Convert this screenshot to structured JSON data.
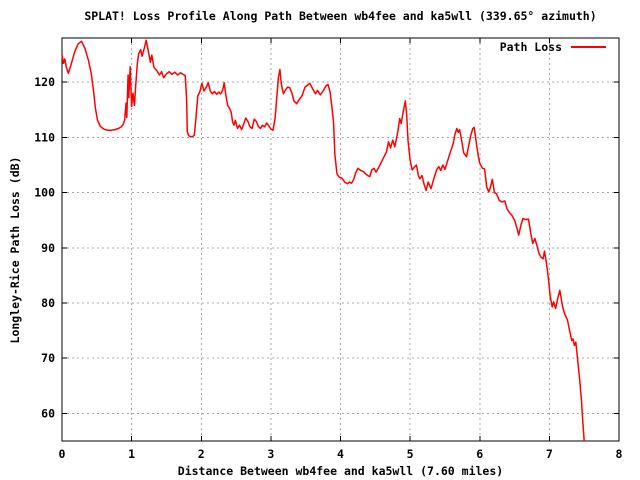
{
  "colors": {
    "line": "#ff0000",
    "grid": "#a8a8a8",
    "axis": "#000000",
    "background": "#ffffff",
    "text": "#000000"
  },
  "legend": {
    "label": "Path Loss"
  },
  "chart_data": {
    "type": "line",
    "title": "SPLAT! Loss Profile Along Path Between wb4fee and ka5wll (339.65° azimuth)",
    "xlabel": "Distance Between wb4fee and ka5wll (7.60 miles)",
    "ylabel": "Longley-Rice Path Loss (dB)",
    "xlim": [
      0,
      8
    ],
    "ylim": [
      55,
      128
    ],
    "x_ticks": [
      0,
      1,
      2,
      3,
      4,
      5,
      6,
      7,
      8
    ],
    "y_ticks": [
      60,
      70,
      80,
      90,
      100,
      110,
      120
    ],
    "grid": true,
    "legend_position": "top-right-inside",
    "series": [
      {
        "name": "Path Loss",
        "color": "#ff0000",
        "points": [
          [
            0.0,
            125.0
          ],
          [
            0.02,
            123.4
          ],
          [
            0.04,
            124.2
          ],
          [
            0.06,
            122.8
          ],
          [
            0.09,
            121.6
          ],
          [
            0.13,
            123.2
          ],
          [
            0.18,
            125.4
          ],
          [
            0.23,
            126.9
          ],
          [
            0.28,
            127.4
          ],
          [
            0.33,
            126.1
          ],
          [
            0.38,
            123.9
          ],
          [
            0.42,
            121.6
          ],
          [
            0.45,
            118.8
          ],
          [
            0.48,
            115.3
          ],
          [
            0.51,
            113.1
          ],
          [
            0.55,
            112.0
          ],
          [
            0.6,
            111.5
          ],
          [
            0.65,
            111.3
          ],
          [
            0.71,
            111.3
          ],
          [
            0.76,
            111.4
          ],
          [
            0.81,
            111.6
          ],
          [
            0.85,
            111.9
          ],
          [
            0.88,
            112.4
          ],
          [
            0.9,
            113.2
          ],
          [
            0.92,
            116.2
          ],
          [
            0.93,
            113.6
          ],
          [
            0.95,
            121.3
          ],
          [
            0.96,
            117.2
          ],
          [
            0.98,
            122.8
          ],
          [
            1.0,
            115.6
          ],
          [
            1.02,
            118.0
          ],
          [
            1.04,
            115.8
          ],
          [
            1.06,
            119.6
          ],
          [
            1.08,
            123.1
          ],
          [
            1.1,
            125.1
          ],
          [
            1.13,
            125.9
          ],
          [
            1.15,
            124.7
          ],
          [
            1.18,
            126.1
          ],
          [
            1.21,
            127.6
          ],
          [
            1.24,
            125.6
          ],
          [
            1.27,
            123.6
          ],
          [
            1.29,
            124.9
          ],
          [
            1.32,
            122.7
          ],
          [
            1.36,
            122.1
          ],
          [
            1.4,
            121.3
          ],
          [
            1.43,
            121.9
          ],
          [
            1.46,
            120.8
          ],
          [
            1.5,
            121.5
          ],
          [
            1.54,
            121.9
          ],
          [
            1.58,
            121.4
          ],
          [
            1.62,
            121.8
          ],
          [
            1.66,
            121.3
          ],
          [
            1.7,
            121.7
          ],
          [
            1.74,
            121.4
          ],
          [
            1.77,
            121.2
          ],
          [
            1.79,
            117.0
          ],
          [
            1.8,
            111.0
          ],
          [
            1.82,
            110.3
          ],
          [
            1.85,
            110.1
          ],
          [
            1.88,
            110.2
          ],
          [
            1.9,
            110.4
          ],
          [
            1.92,
            113.0
          ],
          [
            1.95,
            117.5
          ],
          [
            1.98,
            118.3
          ],
          [
            2.01,
            119.8
          ],
          [
            2.04,
            118.4
          ],
          [
            2.07,
            119.0
          ],
          [
            2.1,
            119.9
          ],
          [
            2.13,
            118.4
          ],
          [
            2.16,
            117.9
          ],
          [
            2.19,
            118.3
          ],
          [
            2.22,
            117.8
          ],
          [
            2.25,
            118.2
          ],
          [
            2.28,
            117.9
          ],
          [
            2.31,
            118.6
          ],
          [
            2.33,
            119.9
          ],
          [
            2.35,
            117.9
          ],
          [
            2.38,
            115.8
          ],
          [
            2.41,
            115.2
          ],
          [
            2.43,
            114.5
          ],
          [
            2.45,
            112.8
          ],
          [
            2.47,
            112.2
          ],
          [
            2.49,
            113.1
          ],
          [
            2.52,
            111.6
          ],
          [
            2.55,
            112.2
          ],
          [
            2.58,
            111.4
          ],
          [
            2.61,
            112.4
          ],
          [
            2.64,
            113.5
          ],
          [
            2.67,
            112.9
          ],
          [
            2.7,
            111.9
          ],
          [
            2.73,
            111.6
          ],
          [
            2.76,
            113.3
          ],
          [
            2.79,
            112.9
          ],
          [
            2.82,
            112.0
          ],
          [
            2.85,
            111.6
          ],
          [
            2.88,
            112.2
          ],
          [
            2.91,
            111.9
          ],
          [
            2.94,
            112.6
          ],
          [
            2.97,
            112.1
          ],
          [
            3.0,
            111.5
          ],
          [
            3.03,
            111.3
          ],
          [
            3.06,
            113.5
          ],
          [
            3.09,
            118.0
          ],
          [
            3.11,
            121.0
          ],
          [
            3.13,
            122.3
          ],
          [
            3.15,
            119.7
          ],
          [
            3.18,
            117.9
          ],
          [
            3.21,
            118.6
          ],
          [
            3.24,
            119.1
          ],
          [
            3.27,
            119.0
          ],
          [
            3.3,
            118.1
          ],
          [
            3.33,
            116.6
          ],
          [
            3.37,
            116.1
          ],
          [
            3.41,
            116.9
          ],
          [
            3.45,
            117.6
          ],
          [
            3.49,
            119.1
          ],
          [
            3.53,
            119.5
          ],
          [
            3.56,
            119.8
          ],
          [
            3.6,
            118.8
          ],
          [
            3.64,
            117.9
          ],
          [
            3.67,
            118.5
          ],
          [
            3.71,
            117.7
          ],
          [
            3.75,
            118.4
          ],
          [
            3.79,
            119.3
          ],
          [
            3.82,
            119.6
          ],
          [
            3.85,
            118.2
          ],
          [
            3.88,
            115.2
          ],
          [
            3.9,
            112.8
          ],
          [
            3.92,
            106.8
          ],
          [
            3.95,
            103.4
          ],
          [
            3.98,
            102.8
          ],
          [
            4.02,
            102.6
          ],
          [
            4.06,
            101.9
          ],
          [
            4.1,
            101.6
          ],
          [
            4.13,
            101.9
          ],
          [
            4.16,
            101.7
          ],
          [
            4.19,
            102.4
          ],
          [
            4.22,
            103.6
          ],
          [
            4.25,
            104.4
          ],
          [
            4.29,
            104.0
          ],
          [
            4.33,
            103.8
          ],
          [
            4.36,
            103.4
          ],
          [
            4.39,
            103.1
          ],
          [
            4.42,
            102.9
          ],
          [
            4.45,
            104.1
          ],
          [
            4.48,
            104.4
          ],
          [
            4.51,
            103.7
          ],
          [
            4.55,
            104.6
          ],
          [
            4.59,
            105.6
          ],
          [
            4.63,
            106.6
          ],
          [
            4.66,
            107.4
          ],
          [
            4.69,
            109.2
          ],
          [
            4.72,
            108.1
          ],
          [
            4.75,
            109.5
          ],
          [
            4.78,
            108.3
          ],
          [
            4.82,
            110.8
          ],
          [
            4.85,
            113.4
          ],
          [
            4.87,
            112.5
          ],
          [
            4.9,
            114.6
          ],
          [
            4.93,
            116.6
          ],
          [
            4.95,
            114.3
          ],
          [
            4.97,
            109.5
          ],
          [
            5.0,
            105.9
          ],
          [
            5.03,
            104.1
          ],
          [
            5.06,
            104.6
          ],
          [
            5.09,
            105.0
          ],
          [
            5.12,
            103.0
          ],
          [
            5.14,
            102.5
          ],
          [
            5.17,
            103.1
          ],
          [
            5.2,
            101.5
          ],
          [
            5.23,
            100.4
          ],
          [
            5.26,
            101.9
          ],
          [
            5.3,
            100.7
          ],
          [
            5.34,
            102.5
          ],
          [
            5.38,
            104.1
          ],
          [
            5.41,
            104.7
          ],
          [
            5.44,
            104.0
          ],
          [
            5.47,
            105.0
          ],
          [
            5.5,
            104.2
          ],
          [
            5.54,
            105.8
          ],
          [
            5.58,
            107.4
          ],
          [
            5.62,
            108.9
          ],
          [
            5.64,
            110.4
          ],
          [
            5.67,
            111.6
          ],
          [
            5.69,
            110.9
          ],
          [
            5.71,
            111.4
          ],
          [
            5.74,
            109.5
          ],
          [
            5.77,
            107.2
          ],
          [
            5.81,
            106.5
          ],
          [
            5.84,
            108.4
          ],
          [
            5.87,
            110.3
          ],
          [
            5.9,
            111.6
          ],
          [
            5.92,
            111.8
          ],
          [
            5.95,
            109.0
          ],
          [
            5.98,
            106.5
          ],
          [
            6.0,
            105.3
          ],
          [
            6.04,
            104.4
          ],
          [
            6.07,
            104.3
          ],
          [
            6.1,
            101.0
          ],
          [
            6.13,
            100.1
          ],
          [
            6.16,
            101.3
          ],
          [
            6.18,
            102.4
          ],
          [
            6.21,
            100.0
          ],
          [
            6.24,
            99.8
          ],
          [
            6.28,
            98.6
          ],
          [
            6.32,
            98.3
          ],
          [
            6.36,
            98.5
          ],
          [
            6.39,
            97.1
          ],
          [
            6.43,
            96.3
          ],
          [
            6.46,
            95.9
          ],
          [
            6.5,
            95.0
          ],
          [
            6.53,
            93.7
          ],
          [
            6.56,
            92.3
          ],
          [
            6.59,
            94.0
          ],
          [
            6.62,
            95.3
          ],
          [
            6.66,
            95.1
          ],
          [
            6.7,
            95.2
          ],
          [
            6.73,
            92.8
          ],
          [
            6.76,
            90.8
          ],
          [
            6.79,
            91.7
          ],
          [
            6.82,
            90.5
          ],
          [
            6.85,
            89.0
          ],
          [
            6.88,
            88.3
          ],
          [
            6.91,
            88.0
          ],
          [
            6.93,
            89.4
          ],
          [
            6.96,
            87.0
          ],
          [
            6.99,
            84.0
          ],
          [
            7.01,
            81.3
          ],
          [
            7.04,
            79.3
          ],
          [
            7.06,
            80.2
          ],
          [
            7.09,
            79.0
          ],
          [
            7.12,
            80.8
          ],
          [
            7.15,
            82.3
          ],
          [
            7.19,
            79.3
          ],
          [
            7.22,
            78.0
          ],
          [
            7.26,
            76.9
          ],
          [
            7.29,
            75.0
          ],
          [
            7.32,
            73.2
          ],
          [
            7.34,
            73.5
          ],
          [
            7.36,
            72.3
          ],
          [
            7.38,
            72.9
          ],
          [
            7.4,
            70.5
          ],
          [
            7.42,
            68.0
          ],
          [
            7.44,
            65.5
          ],
          [
            7.46,
            62.5
          ],
          [
            7.48,
            58.5
          ],
          [
            7.5,
            55.0
          ]
        ]
      }
    ]
  }
}
